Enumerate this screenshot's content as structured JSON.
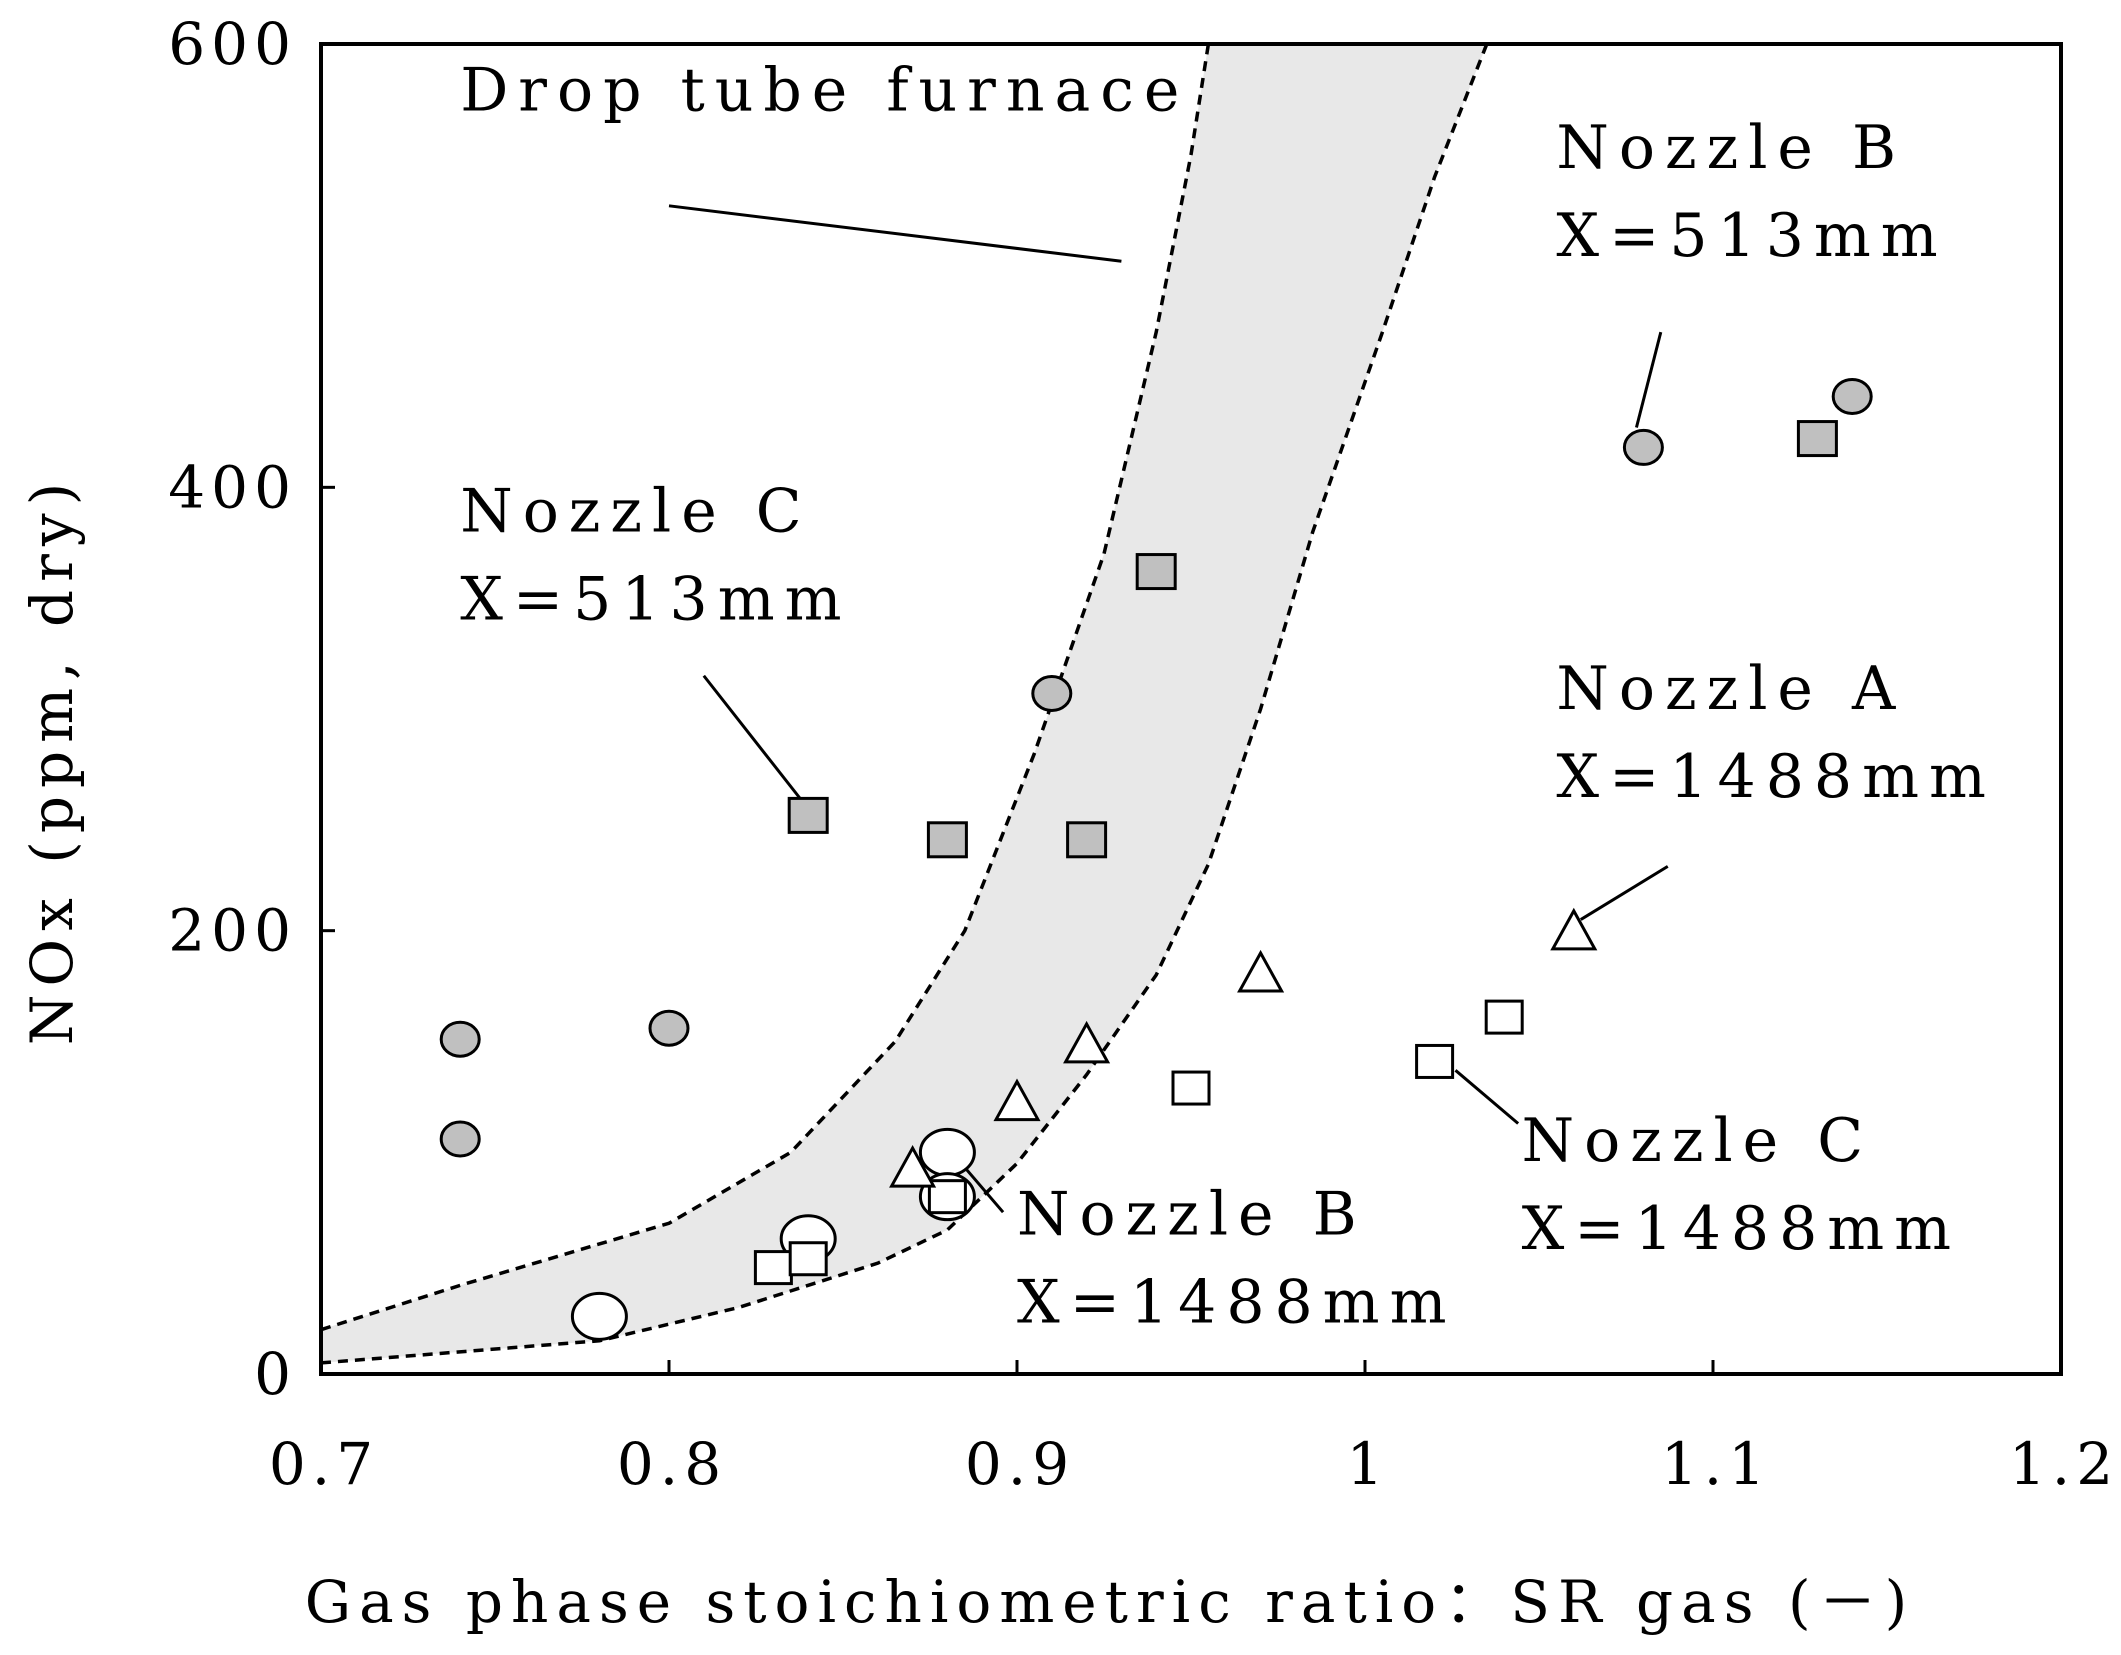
{
  "chart_data": {
    "type": "scatter",
    "xlabel": "Gas phase stoichiometric ratio：SR gas (－)",
    "ylabel": "NOx (ppm, dry)",
    "xlim": [
      0.7,
      1.2
    ],
    "ylim": [
      0,
      600
    ],
    "xticks": [
      "0.7",
      "0.8",
      "0.9",
      "1",
      "1.1",
      "1.2"
    ],
    "yticks": [
      "0",
      "200",
      "400",
      "600"
    ],
    "xtick_values": [
      0.7,
      0.8,
      0.9,
      1.0,
      1.1,
      1.2
    ],
    "ytick_values": [
      0,
      200,
      400,
      600
    ],
    "grid": false,
    "series": [
      {
        "marker": "filled-circle",
        "points": [
          {
            "x": 0.74,
            "y": 151
          },
          {
            "x": 0.74,
            "y": 106
          },
          {
            "x": 0.8,
            "y": 156
          },
          {
            "x": 0.91,
            "y": 307
          },
          {
            "x": 1.08,
            "y": 418
          },
          {
            "x": 1.14,
            "y": 441
          }
        ]
      },
      {
        "marker": "filled-square",
        "points": [
          {
            "x": 0.84,
            "y": 252
          },
          {
            "x": 0.88,
            "y": 241
          },
          {
            "x": 0.92,
            "y": 241
          },
          {
            "x": 0.94,
            "y": 362
          },
          {
            "x": 1.13,
            "y": 422
          }
        ]
      },
      {
        "marker": "open-circle",
        "points": [
          {
            "x": 0.78,
            "y": 26
          },
          {
            "x": 0.84,
            "y": 61
          },
          {
            "x": 0.88,
            "y": 100
          },
          {
            "x": 0.88,
            "y": 80
          }
        ]
      },
      {
        "marker": "open-square",
        "points": [
          {
            "x": 0.83,
            "y": 48
          },
          {
            "x": 0.84,
            "y": 52
          },
          {
            "x": 0.88,
            "y": 80
          },
          {
            "x": 0.95,
            "y": 129
          },
          {
            "x": 1.02,
            "y": 141
          },
          {
            "x": 1.04,
            "y": 161
          }
        ]
      },
      {
        "marker": "open-triangle",
        "points": [
          {
            "x": 0.87,
            "y": 92
          },
          {
            "x": 0.9,
            "y": 122
          },
          {
            "x": 0.92,
            "y": 148
          },
          {
            "x": 0.97,
            "y": 180
          },
          {
            "x": 1.06,
            "y": 199
          }
        ]
      }
    ],
    "band": {
      "label": "Drop tube furnace",
      "upper": [
        {
          "x": 0.7,
          "y": 20
        },
        {
          "x": 0.74,
          "y": 40
        },
        {
          "x": 0.8,
          "y": 68
        },
        {
          "x": 0.835,
          "y": 100
        },
        {
          "x": 0.865,
          "y": 150
        },
        {
          "x": 0.885,
          "y": 200
        },
        {
          "x": 0.905,
          "y": 280
        },
        {
          "x": 0.925,
          "y": 370
        },
        {
          "x": 0.94,
          "y": 470
        },
        {
          "x": 0.95,
          "y": 550
        },
        {
          "x": 0.955,
          "y": 600
        }
      ],
      "lower": [
        {
          "x": 0.7,
          "y": 5
        },
        {
          "x": 0.78,
          "y": 15
        },
        {
          "x": 0.82,
          "y": 30
        },
        {
          "x": 0.86,
          "y": 50
        },
        {
          "x": 0.88,
          "y": 65
        },
        {
          "x": 0.9,
          "y": 95
        },
        {
          "x": 0.92,
          "y": 135
        },
        {
          "x": 0.94,
          "y": 180
        },
        {
          "x": 0.955,
          "y": 230
        },
        {
          "x": 0.97,
          "y": 300
        },
        {
          "x": 0.985,
          "y": 380
        },
        {
          "x": 1.005,
          "y": 470
        },
        {
          "x": 1.02,
          "y": 540
        },
        {
          "x": 1.035,
          "y": 600
        }
      ]
    },
    "annotations": [
      {
        "lines": [
          "Drop tube furnace"
        ],
        "x": 0.74,
        "y": 570
      },
      {
        "lines": [
          "Nozzle B",
          "X=513mm"
        ],
        "x": 1.055,
        "y": 544
      },
      {
        "lines": [
          "Nozzle C",
          "X=513mm"
        ],
        "x": 0.74,
        "y": 380
      },
      {
        "lines": [
          "Nozzle A",
          "X=1488mm"
        ],
        "x": 1.055,
        "y": 300
      },
      {
        "lines": [
          "Nozzle C",
          "X=1488mm"
        ],
        "x": 1.045,
        "y": 96
      },
      {
        "lines": [
          "Nozzle B",
          "X=1488mm"
        ],
        "x": 0.9,
        "y": 63
      }
    ],
    "leaders": [
      {
        "from": [
          0.8,
          527
        ],
        "to": [
          0.93,
          502
        ]
      },
      {
        "from": [
          1.085,
          470
        ],
        "to": [
          1.078,
          427
        ]
      },
      {
        "from": [
          0.81,
          315
        ],
        "to": [
          0.838,
          259
        ]
      },
      {
        "from": [
          1.087,
          229
        ],
        "to": [
          1.062,
          205
        ]
      },
      {
        "from": [
          1.044,
          113
        ],
        "to": [
          1.026,
          137
        ]
      },
      {
        "from": [
          0.896,
          73
        ],
        "to": [
          0.884,
          95
        ]
      }
    ]
  }
}
